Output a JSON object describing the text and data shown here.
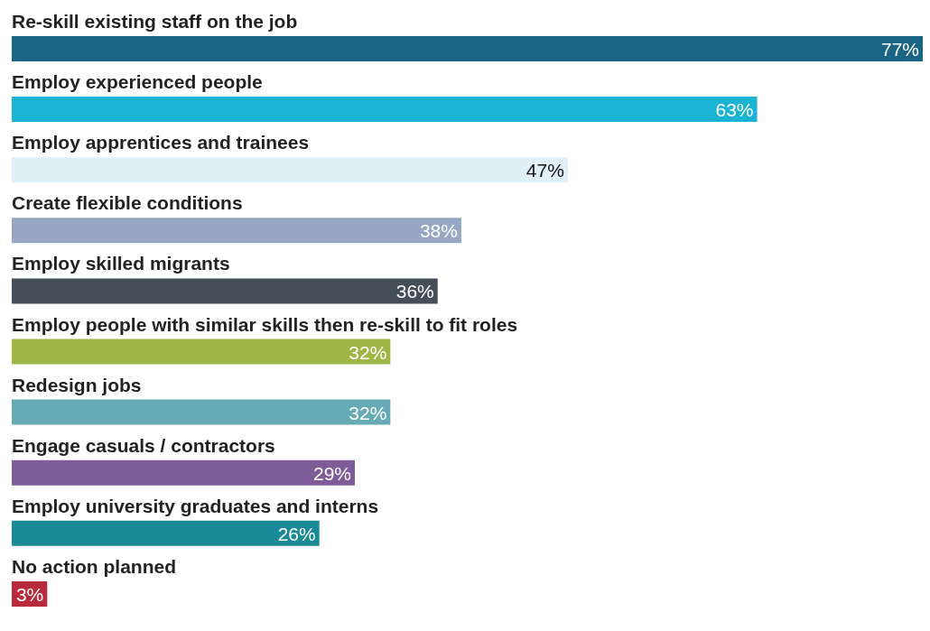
{
  "chart_data": {
    "type": "bar",
    "orientation": "horizontal",
    "categories": [
      "Re-skill existing staff on the job",
      "Employ experienced people",
      "Employ apprentices and trainees",
      "Create flexible conditions",
      "Employ skilled migrants",
      "Employ people with similar skills then re-skill to fit roles",
      "Redesign jobs",
      "Engage casuals / contractors",
      "Employ university graduates and interns",
      "No action planned"
    ],
    "values": [
      77,
      63,
      47,
      38,
      36,
      32,
      32,
      29,
      26,
      3
    ],
    "value_labels": [
      "77%",
      "63%",
      "47%",
      "38%",
      "36%",
      "32%",
      "32%",
      "29%",
      "26%",
      "3%"
    ],
    "colors": [
      "#1a6585",
      "#1ab3d4",
      "#e0f0f6",
      "#97a7c3",
      "#454f59",
      "#9db644",
      "#66aab5",
      "#7f5c98",
      "#1a8a96",
      "#b92a3c"
    ],
    "grid": false,
    "legend": false
  }
}
